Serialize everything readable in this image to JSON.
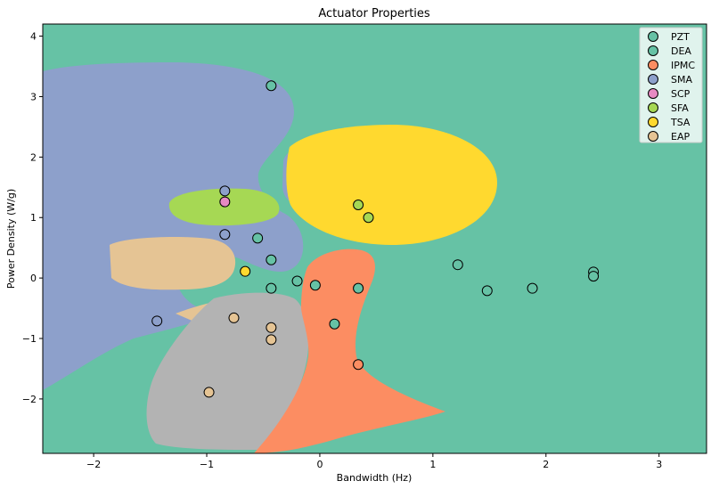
{
  "chart_data": {
    "type": "scatter",
    "title": "Actuator Properties",
    "xlabel": "Bandwidth (Hz)",
    "ylabel": "Power Density (W/g)",
    "xlim": [
      -2.45,
      3.42
    ],
    "ylim": [
      -2.9,
      4.2
    ],
    "xticks": [
      -2,
      -1,
      0,
      1,
      2,
      3
    ],
    "yticks": [
      -2,
      -1,
      0,
      1,
      2,
      3,
      4
    ],
    "xtick_labels": [
      "−2",
      "−1",
      "0",
      "1",
      "2",
      "3"
    ],
    "ytick_labels": [
      "−2",
      "−1",
      "0",
      "1",
      "2",
      "3",
      "4"
    ],
    "grid": false,
    "legend_position": "top-right",
    "background_region_color": "#66c2a5",
    "series": [
      {
        "name": "PZT",
        "color": "#66c2a5",
        "points": [
          [
            -0.43,
            3.18
          ],
          [
            -0.55,
            0.66
          ],
          [
            -0.43,
            0.3
          ],
          [
            -0.43,
            -0.17
          ],
          [
            -0.2,
            -0.05
          ],
          [
            -0.04,
            -0.12
          ],
          [
            0.34,
            -0.17
          ],
          [
            0.13,
            -0.76
          ],
          [
            1.22,
            0.22
          ],
          [
            1.48,
            -0.21
          ],
          [
            1.88,
            -0.17
          ],
          [
            2.42,
            0.1
          ],
          [
            2.42,
            0.03
          ]
        ]
      },
      {
        "name": "DEA",
        "color": "#66c2a5",
        "points": []
      },
      {
        "name": "IPMC",
        "color": "#fc8d62",
        "points": [
          [
            0.34,
            -1.43
          ]
        ]
      },
      {
        "name": "SMA",
        "color": "#8da0cb",
        "points": [
          [
            -0.84,
            1.44
          ],
          [
            -0.84,
            0.72
          ],
          [
            -1.44,
            -0.71
          ]
        ]
      },
      {
        "name": "SCP",
        "color": "#e78ac3",
        "points": [
          [
            -0.84,
            1.26
          ]
        ]
      },
      {
        "name": "SFA",
        "color": "#a6d854",
        "points": [
          [
            0.34,
            1.21
          ],
          [
            0.43,
            1.0
          ]
        ]
      },
      {
        "name": "TSA",
        "color": "#ffd92f",
        "points": [
          [
            -0.66,
            0.11
          ]
        ]
      },
      {
        "name": "EAP",
        "color": "#e5c494",
        "points": [
          [
            -0.76,
            -0.66
          ],
          [
            -0.43,
            -0.82
          ],
          [
            -0.43,
            -1.02
          ],
          [
            -0.98,
            -1.89
          ]
        ]
      }
    ]
  }
}
